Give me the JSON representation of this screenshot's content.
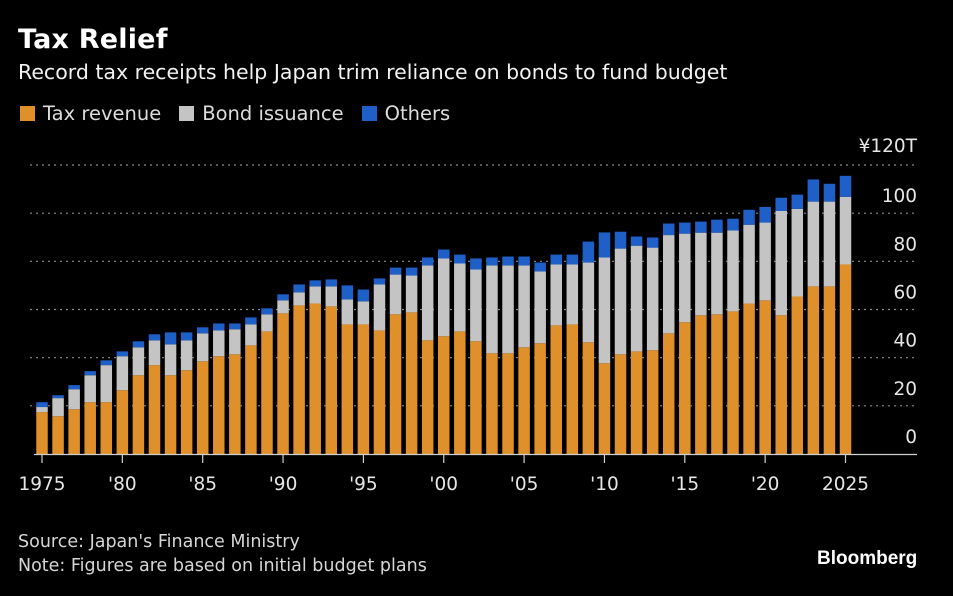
{
  "header": {
    "title": "Tax Relief",
    "subtitle": "Record tax receipts help Japan trim reliance on bonds to fund budget"
  },
  "legend": [
    {
      "label": "Tax revenue",
      "color": "#E0902A"
    },
    {
      "label": "Bond issuance",
      "color": "#C4C4C4"
    },
    {
      "label": "Others",
      "color": "#1E5FC8"
    }
  ],
  "footer": {
    "source": "Source: Japan's Finance Ministry",
    "note": "Note: Figures are based on initial budget plans",
    "brand": "Bloomberg"
  },
  "chart_data": {
    "type": "bar",
    "stacked": true,
    "title": "Tax Relief",
    "subtitle": "Record tax receipts help Japan trim reliance on bonds to fund budget",
    "xlabel": "",
    "ylabel": "",
    "y_unit_label": "¥120T",
    "ylim": [
      0,
      120
    ],
    "yticks": [
      0,
      20,
      40,
      60,
      80,
      100,
      120
    ],
    "ytick_labels": [
      "0",
      "20",
      "40",
      "60",
      "80",
      "100",
      "¥120T"
    ],
    "y_axis_side": "right",
    "grid": true,
    "legend_position": "top-left",
    "xtick_years": [
      1975,
      1980,
      1985,
      1990,
      1995,
      2000,
      2005,
      2010,
      2015,
      2020,
      2025
    ],
    "xtick_labels": [
      "1975",
      "'80",
      "'85",
      "'90",
      "'95",
      "'00",
      "'05",
      "'10",
      "'15",
      "'20",
      "2025"
    ],
    "categories": [
      1975,
      1976,
      1977,
      1978,
      1979,
      1980,
      1981,
      1982,
      1983,
      1984,
      1985,
      1986,
      1987,
      1988,
      1989,
      1990,
      1991,
      1992,
      1993,
      1994,
      1995,
      1996,
      1997,
      1998,
      1999,
      2000,
      2001,
      2002,
      2003,
      2004,
      2005,
      2006,
      2007,
      2008,
      2009,
      2010,
      2011,
      2012,
      2013,
      2014,
      2015,
      2016,
      2017,
      2018,
      2019,
      2020,
      2021,
      2022,
      2023,
      2024,
      2025
    ],
    "series": [
      {
        "name": "Tax revenue",
        "color": "#E0902A",
        "values": [
          17.4,
          15.7,
          18.6,
          21.5,
          21.5,
          26.5,
          32.7,
          36.9,
          32.7,
          34.8,
          38.5,
          40.6,
          41.4,
          45.1,
          50.9,
          58.4,
          61.7,
          62.5,
          61.3,
          53.8,
          53.8,
          51.3,
          58.0,
          58.8,
          47.2,
          48.9,
          50.9,
          46.8,
          41.8,
          41.8,
          44.3,
          46.0,
          53.4,
          53.8,
          46.4,
          37.7,
          41.4,
          42.6,
          43.1,
          50.1,
          54.7,
          57.6,
          58.0,
          59.2,
          62.5,
          63.8,
          57.6,
          65.4,
          69.6,
          69.6,
          78.7
        ]
      },
      {
        "name": "Bond issuance",
        "color": "#C4C4C4",
        "values": [
          2.1,
          7.5,
          8.3,
          11.2,
          15.4,
          14.1,
          11.6,
          10.3,
          12.8,
          12.4,
          11.6,
          10.7,
          10.4,
          8.7,
          7.1,
          5.4,
          5.4,
          7.1,
          8.3,
          10.4,
          9.6,
          19.1,
          16.5,
          15.3,
          31.1,
          32.3,
          28.2,
          29.8,
          36.5,
          36.5,
          34.0,
          29.8,
          25.3,
          24.9,
          33.1,
          43.9,
          43.9,
          43.9,
          42.6,
          40.8,
          36.8,
          34.3,
          33.9,
          33.6,
          32.7,
          32.3,
          43.3,
          36.4,
          35.2,
          35.2,
          28.1
        ]
      },
      {
        "name": "Others",
        "color": "#1E5FC8",
        "values": [
          2.0,
          1.2,
          1.7,
          1.7,
          2.0,
          2.0,
          2.5,
          2.5,
          5.0,
          3.3,
          2.5,
          2.9,
          2.4,
          2.9,
          2.5,
          2.5,
          3.3,
          2.5,
          2.9,
          5.8,
          4.9,
          2.5,
          2.9,
          3.3,
          3.3,
          3.7,
          3.7,
          4.6,
          3.3,
          3.7,
          3.7,
          3.7,
          4.1,
          4.1,
          8.7,
          10.4,
          7.0,
          3.8,
          4.2,
          4.8,
          4.6,
          4.6,
          5.4,
          4.9,
          6.2,
          6.5,
          5.5,
          5.9,
          9.2,
          7.4,
          8.7
        ]
      }
    ]
  }
}
